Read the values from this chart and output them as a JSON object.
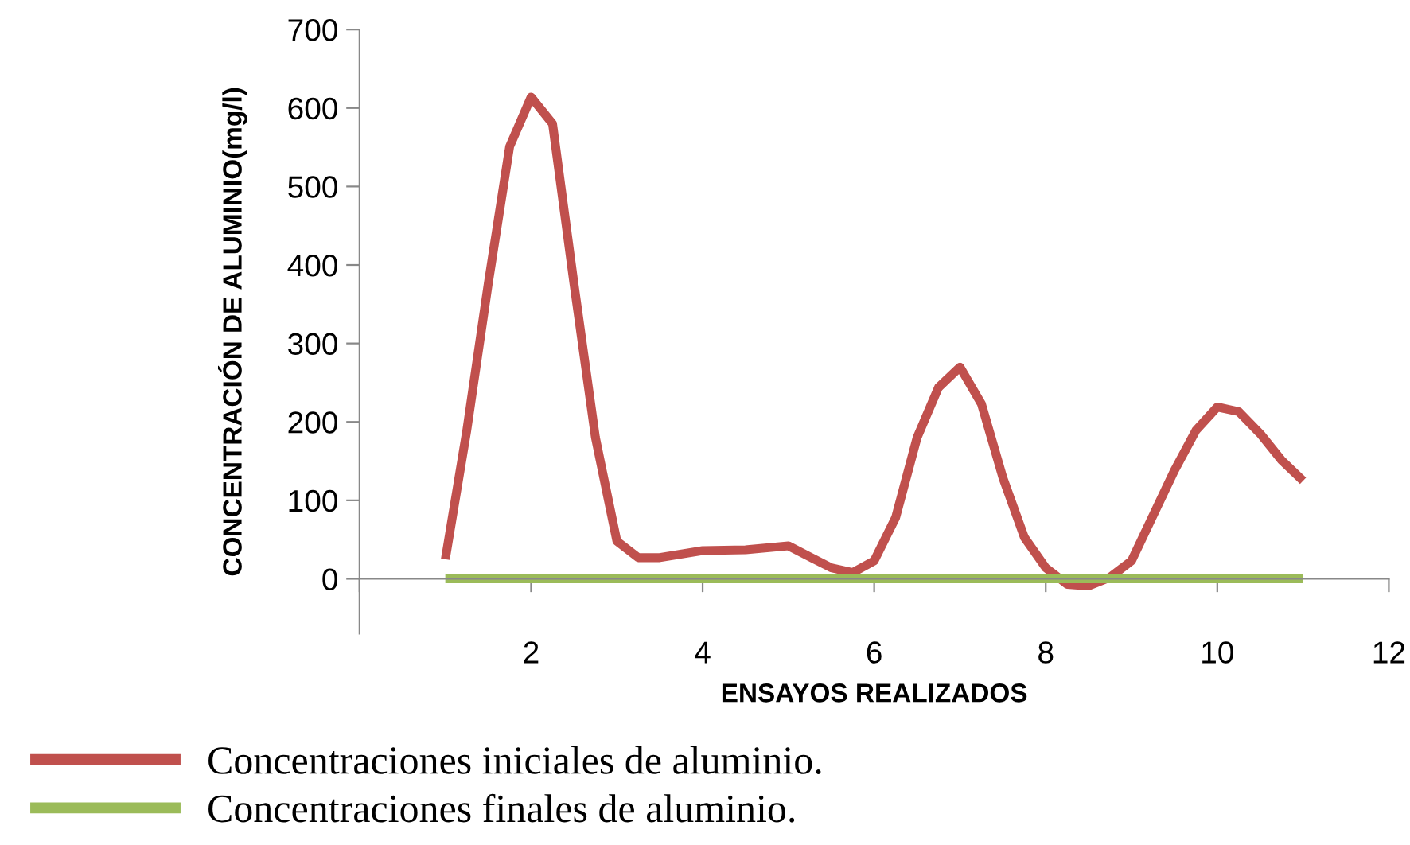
{
  "chart_data": {
    "type": "line",
    "xlabel": "ENSAYOS REALIZADOS",
    "ylabel": "CONCENTRACIÓN DE ALUMINIO(mg/l)",
    "series": [
      {
        "name": "Concentraciones iniciales de aluminio.",
        "color": "#c0504d",
        "x": [
          1,
          1.25,
          1.5,
          1.75,
          2,
          2.25,
          2.5,
          2.75,
          3,
          3.25,
          3.5,
          4,
          4.5,
          5,
          5.5,
          5.75,
          6,
          6.25,
          6.5,
          6.75,
          7,
          7.25,
          7.5,
          7.75,
          8,
          8.25,
          8.5,
          8.75,
          9,
          9.5,
          9.75,
          10,
          10.25,
          10.5,
          10.75,
          11
        ],
        "values": [
          25,
          189,
          376,
          551,
          614,
          580,
          376,
          180,
          48,
          27,
          27,
          36,
          37,
          42,
          14,
          8,
          23,
          78,
          180,
          244,
          270,
          223,
          129,
          53,
          14,
          -7,
          -9,
          2,
          23,
          138,
          189,
          219,
          213,
          185,
          151,
          125
        ]
      },
      {
        "name": "Concentraciones finales de aluminio.",
        "color": "#9bbb59",
        "x": [
          1,
          11
        ],
        "values": [
          0,
          0
        ]
      }
    ],
    "xlim": [
      0,
      12
    ],
    "xticks": [
      {
        "value": 0,
        "label": null
      },
      2,
      4,
      6,
      8,
      10,
      12
    ],
    "ylim": [
      -70,
      700
    ],
    "yticks": [
      0,
      100,
      200,
      300,
      400,
      500,
      600,
      700
    ],
    "grid": false,
    "legend": "bottom",
    "marker": "none",
    "line_style": "solid"
  }
}
